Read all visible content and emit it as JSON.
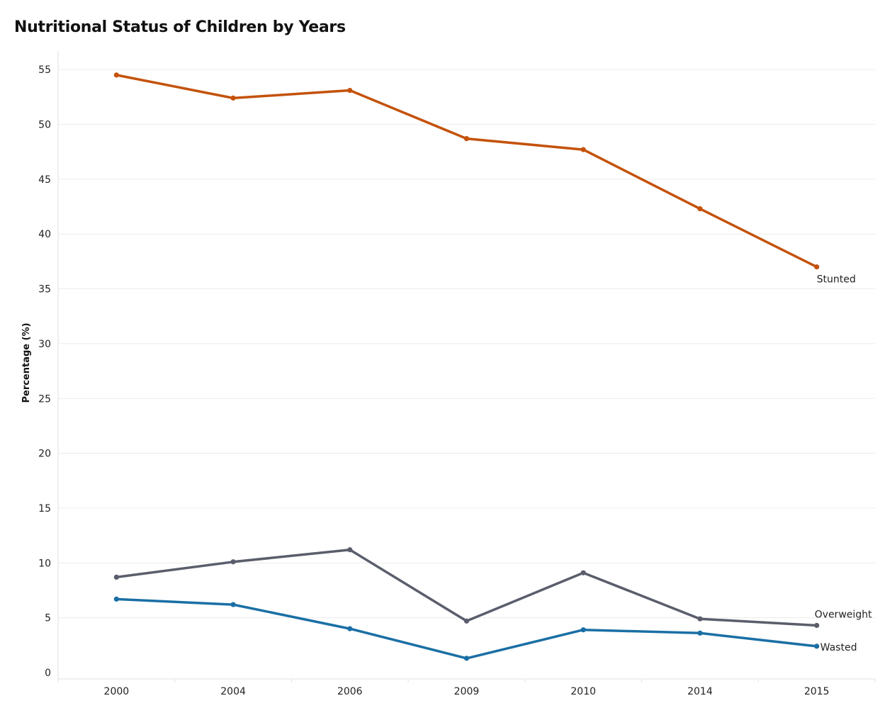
{
  "chart_data": {
    "type": "line",
    "title": "Nutritional Status of Children by Years",
    "xlabel": "",
    "ylabel": "Percentage (%)",
    "categories": [
      "2000",
      "2004",
      "2006",
      "2009",
      "2010",
      "2014",
      "2015"
    ],
    "ylim": [
      0,
      55
    ],
    "yticks": [
      0,
      5,
      10,
      15,
      20,
      25,
      30,
      35,
      40,
      45,
      50,
      55
    ],
    "grid": true,
    "legend": "direct labels at line ends",
    "series": [
      {
        "name": "Stunted",
        "color": "#c4520a",
        "values": [
          54.5,
          52.4,
          53.1,
          48.7,
          47.7,
          42.3,
          37.0
        ]
      },
      {
        "name": "Overweight",
        "color": "#5a5d6b",
        "values": [
          8.7,
          10.1,
          11.2,
          4.7,
          9.1,
          4.9,
          4.3
        ]
      },
      {
        "name": "Wasted",
        "color": "#1a6fa5",
        "values": [
          6.7,
          6.2,
          4.0,
          1.3,
          3.9,
          3.6,
          2.4
        ]
      }
    ]
  }
}
